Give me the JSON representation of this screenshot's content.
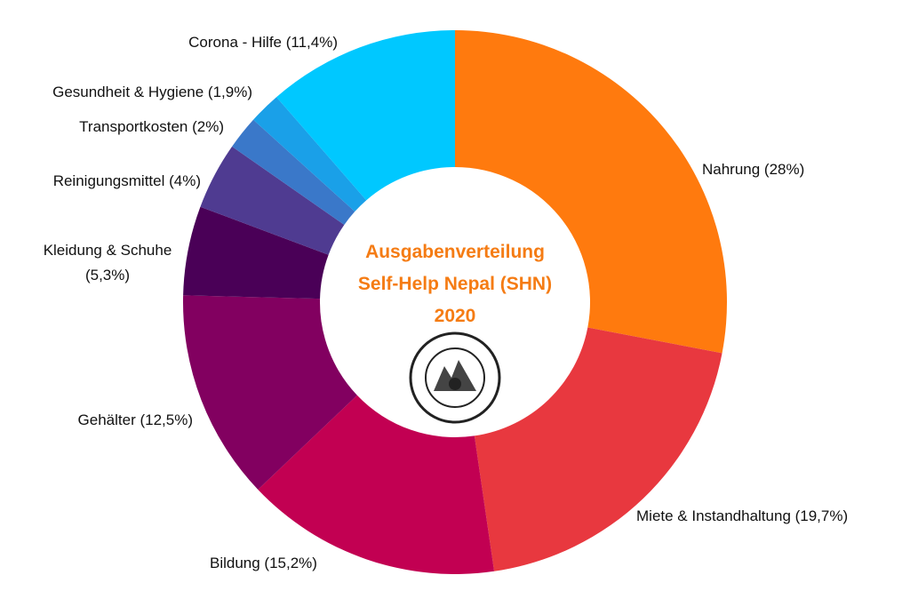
{
  "chart_data": {
    "type": "donut",
    "title": "Ausgabenverteilung Self-Help Nepal (SHN) 2020",
    "categories": [
      "Nahrung (28%)",
      "Miete & Instandhaltung (19,7%)",
      "Bildung (15,2%)",
      "Gehälter (12,5%)",
      "Kleidung & Schuhe (5,3%)",
      "Reinigungsmittel (4%)",
      "Transportkosten (2%)",
      "Gesundheit & Hygiene (1,9%)",
      "Corona - Hilfe (11,4%)"
    ],
    "values": [
      28,
      19.7,
      15.2,
      12.5,
      5.3,
      4,
      2,
      1.9,
      11.4
    ],
    "colors": [
      "#ff7a0e",
      "#e8383f",
      "#c20052",
      "#820060",
      "#4a0057",
      "#4f3b91",
      "#3a78c9",
      "#1aa0e8",
      "#00c8ff"
    ]
  }
}
